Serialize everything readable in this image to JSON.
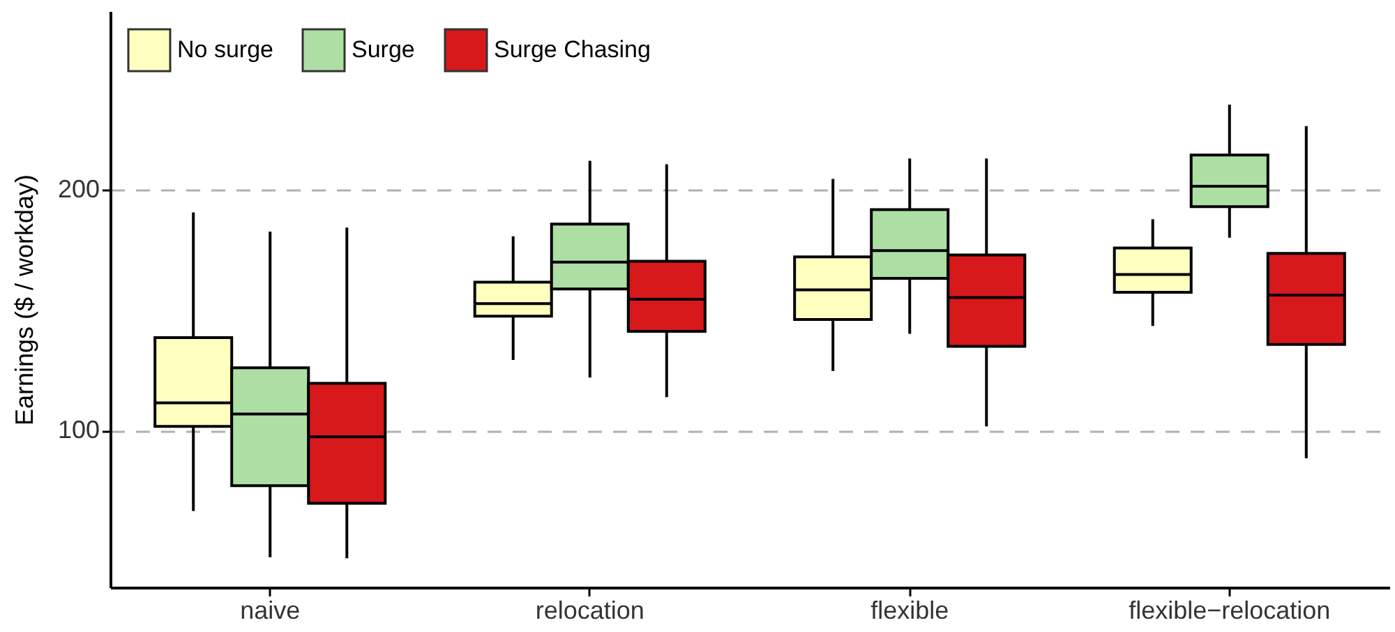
{
  "chart_data": {
    "type": "box",
    "ylabel": "Earnings ($ / workday)",
    "categories": [
      "naive",
      "relocation",
      "flexible",
      "flexible−relocation"
    ],
    "ylim": [
      35,
      274
    ],
    "yticks": [
      100,
      200
    ],
    "grid": "y",
    "legend": "top left",
    "series": [
      {
        "name": "No surge",
        "color": "#ffffc0",
        "boxes": [
          {
            "low": 66.7,
            "q1": 101.8,
            "median": 111.5,
            "q3": 138.6,
            "high": 190.5
          },
          {
            "low": 129.3,
            "q1": 147.5,
            "median": 152.7,
            "q3": 161.6,
            "high": 180.6
          },
          {
            "low": 124.8,
            "q1": 146.1,
            "median": 158.4,
            "q3": 172.1,
            "high": 204.4
          },
          {
            "low": 143.4,
            "q1": 157.4,
            "median": 164.8,
            "q3": 175.8,
            "high": 187.7
          }
        ]
      },
      {
        "name": "Surge",
        "color": "#addfa5",
        "boxes": [
          {
            "low": 47.5,
            "q1": 77.2,
            "median": 106.9,
            "q3": 126.1,
            "high": 182.6
          },
          {
            "low": 122.0,
            "q1": 158.8,
            "median": 169.9,
            "q3": 185.7,
            "high": 211.9
          },
          {
            "low": 140.2,
            "q1": 163.2,
            "median": 174.7,
            "q3": 191.7,
            "high": 212.9
          },
          {
            "low": 180.0,
            "q1": 192.9,
            "median": 201.4,
            "q3": 214.3,
            "high": 235.2
          }
        ]
      },
      {
        "name": "Surge Chasing",
        "color": "#d7191c",
        "boxes": [
          {
            "low": 47.1,
            "q1": 69.9,
            "median": 97.4,
            "q3": 119.6,
            "high": 184.2
          },
          {
            "low": 113.9,
            "q1": 141.2,
            "median": 154.5,
            "q3": 170.3,
            "high": 210.5
          },
          {
            "low": 101.8,
            "q1": 135.0,
            "median": 155.2,
            "q3": 172.9,
            "high": 212.9
          },
          {
            "low": 88.5,
            "q1": 135.8,
            "median": 156.2,
            "q3": 173.5,
            "high": 226.3
          }
        ]
      }
    ]
  }
}
